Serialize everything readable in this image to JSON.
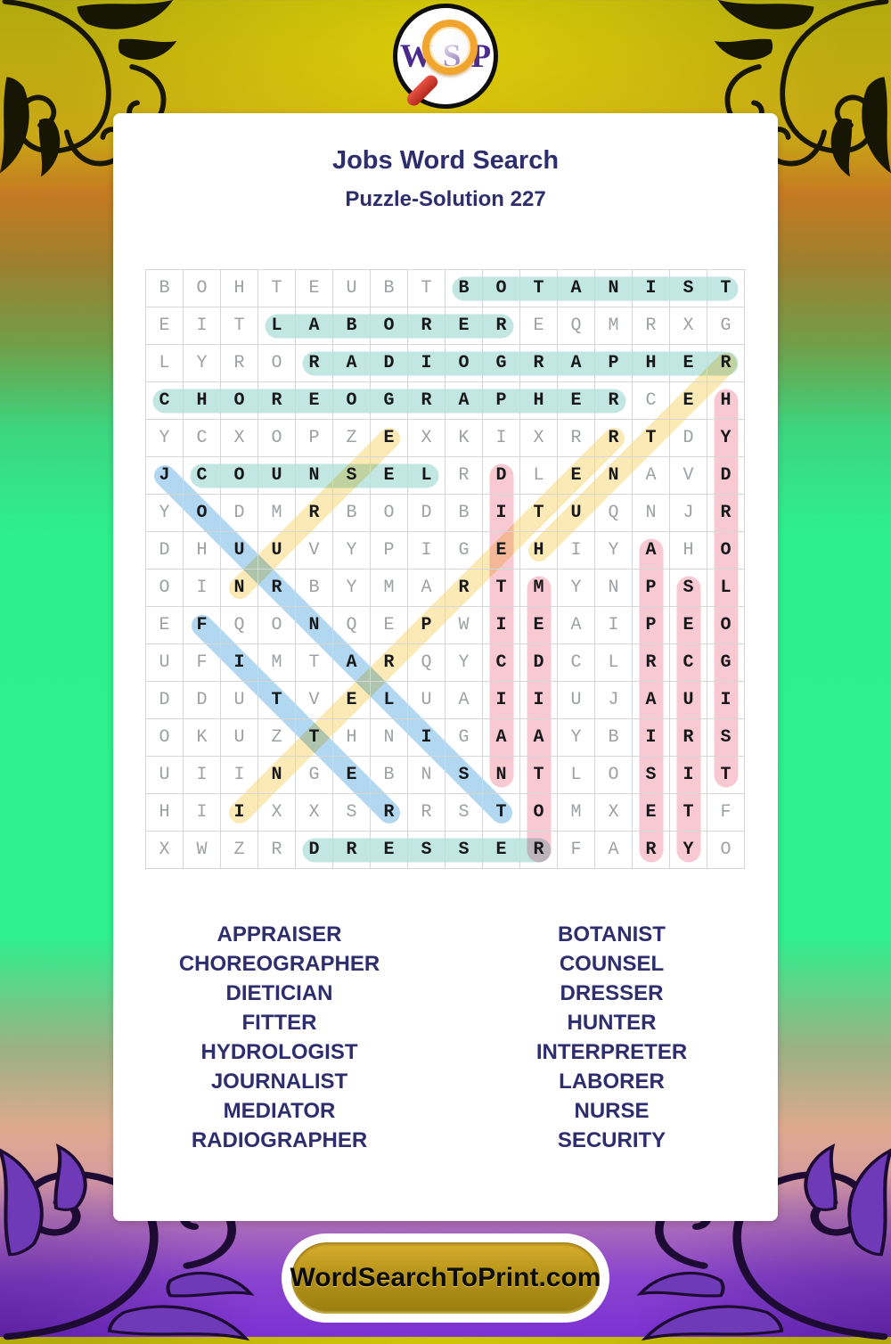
{
  "logo": {
    "letters": [
      "W",
      "S",
      "P"
    ]
  },
  "header": {
    "title": "Jobs Word Search",
    "subtitle": "Puzzle-Solution 227"
  },
  "grid": {
    "size": 16,
    "rows": [
      "BOHTEUBTBOTANIST",
      "EITLABOREREQMRXG",
      "LYRORADIOGRAPHER",
      "CHOREOGRAPHERCEH",
      "YCXOPZEXKIXRRTDY",
      "JCOUNSELRDLENAVD",
      "YODMRBODBITUQNJR",
      "DHUUVYPIGEHIYAHO",
      "OINRBYMARTMYNPSL",
      "EFQONQEPWIEAIPEO",
      "UFIMTARQYCDCLRCG",
      "DDUTVELUAIIUJAUI",
      "OKUZTHNIGAAYBIRS",
      "UIINGEBNSNTLOSIT",
      "HIIXXSRRSTOMXETF",
      "XWZRDRESSERFARYO"
    ],
    "highlight_colors": {
      "teal": "#c2e6e1",
      "pink": "#f8c8d3",
      "blue": "#b2d7f1",
      "yellow": "#fbe9b6"
    },
    "placements": [
      {
        "word": "BOTANIST",
        "row": 1,
        "col": 9,
        "dir": "h",
        "color": "teal"
      },
      {
        "word": "LABORER",
        "row": 2,
        "col": 4,
        "dir": "h",
        "color": "teal"
      },
      {
        "word": "RADIOGRAPHER",
        "row": 3,
        "col": 5,
        "dir": "h",
        "color": "teal"
      },
      {
        "word": "CHOREOGRAPHER",
        "row": 4,
        "col": 1,
        "dir": "h",
        "color": "teal"
      },
      {
        "word": "COUNSEL",
        "row": 6,
        "col": 2,
        "dir": "h",
        "color": "teal"
      },
      {
        "word": "DRESSER",
        "row": 16,
        "col": 5,
        "dir": "h",
        "color": "teal"
      },
      {
        "word": "HYDROLOGIST",
        "row": 4,
        "col": 16,
        "dir": "v",
        "color": "pink"
      },
      {
        "word": "DIETICIAN",
        "row": 6,
        "col": 10,
        "dir": "v",
        "color": "pink"
      },
      {
        "word": "MEDIATOR",
        "row": 9,
        "col": 11,
        "dir": "v",
        "color": "pink"
      },
      {
        "word": "APPRAISER",
        "row": 8,
        "col": 14,
        "dir": "v",
        "color": "pink"
      },
      {
        "word": "SECURITY",
        "row": 9,
        "col": 15,
        "dir": "v",
        "color": "pink"
      },
      {
        "word": "JOURNALIST",
        "row": 6,
        "col": 1,
        "dir": "dr",
        "color": "blue"
      },
      {
        "word": "FITTER",
        "row": 10,
        "col": 2,
        "dir": "dr",
        "color": "blue"
      },
      {
        "word": "NURSE",
        "row": 9,
        "col": 3,
        "dir": "ur",
        "color": "yellow"
      },
      {
        "word": "HUNTER",
        "row": 8,
        "col": 11,
        "dir": "ur",
        "color": "yellow"
      },
      {
        "word": "INTERPRETER",
        "row": 15,
        "col": 3,
        "dir": "ur",
        "color": "yellow"
      }
    ]
  },
  "word_list": {
    "left": [
      "APPRAISER",
      "CHOREOGRAPHER",
      "DIETICIAN",
      "FITTER",
      "HYDROLOGIST",
      "JOURNALIST",
      "MEDIATOR",
      "RADIOGRAPHER"
    ],
    "right": [
      "BOTANIST",
      "COUNSEL",
      "DRESSER",
      "HUNTER",
      "INTERPRETER",
      "LABORER",
      "NURSE",
      "SECURITY"
    ]
  },
  "footer": {
    "button_label": "WordSearchToPrint.com"
  }
}
